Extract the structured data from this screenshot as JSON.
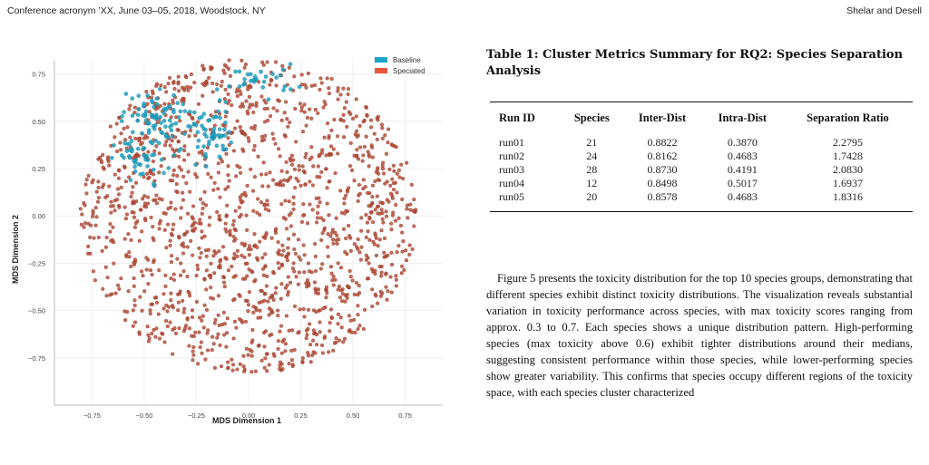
{
  "header": {
    "left": "Conference acronym ’XX, June 03–05, 2018, Woodstock, NY",
    "right": "Shelar and Desell"
  },
  "table": {
    "caption": "Table 1: Cluster Metrics Summary for RQ2: Species Separation Analysis",
    "columns": [
      "Run ID",
      "Species",
      "Inter-Dist",
      "Intra-Dist",
      "Separation Ratio"
    ],
    "rows": [
      [
        "run01",
        "21",
        "0.8822",
        "0.3870",
        "2.2795"
      ],
      [
        "run02",
        "24",
        "0.8162",
        "0.4683",
        "1.7428"
      ],
      [
        "run03",
        "28",
        "0.8730",
        "0.4191",
        "2.0830"
      ],
      [
        "run04",
        "12",
        "0.8498",
        "0.5017",
        "1.6937"
      ],
      [
        "run05",
        "20",
        "0.8578",
        "0.4683",
        "1.8316"
      ]
    ]
  },
  "paragraph": "Figure 5 presents the toxicity distribution for the top 10 species groups, demonstrating that different species exhibit distinct toxicity distributions. The visualization reveals substantial variation in toxicity performance across species, with max toxicity scores ranging from approx. 0.3 to 0.7. Each species shows a unique distribution pattern. High-performing species (max toxicity above 0.6) exhibit tighter distributions around their medians, suggesting consistent performance within those species, while lower-performing species show greater variability. This confirms that species occupy different regions of the toxicity space, with each species cluster characterized",
  "chart_data": {
    "type": "scatter",
    "title": "",
    "xlabel": "MDS Dimension 1",
    "ylabel": "MDS Dimension 2",
    "xlim": [
      -0.93,
      0.93
    ],
    "ylim": [
      -1.0,
      0.82
    ],
    "xticks": [
      "−0.75",
      "−0.50",
      "−0.25",
      "0.00",
      "0.25",
      "0.50",
      "0.75"
    ],
    "xtick_values": [
      -0.75,
      -0.5,
      -0.25,
      0.0,
      0.25,
      0.5,
      0.75
    ],
    "yticks": [
      "0.75",
      "0.50",
      "0.25",
      "0.00",
      "−0.25",
      "−0.50",
      "−0.75"
    ],
    "ytick_values": [
      0.75,
      0.5,
      0.25,
      0.0,
      -0.25,
      -0.5,
      -0.75
    ],
    "grid": true,
    "legend_position": "top-right",
    "series": [
      {
        "name": "Baseline",
        "color": "#1ba3c6",
        "clusters": [
          {
            "cx": -0.47,
            "cy": 0.53,
            "sx": 0.07,
            "sy": 0.06,
            "n": 60
          },
          {
            "cx": -0.18,
            "cy": 0.44,
            "sx": 0.05,
            "sy": 0.08,
            "n": 55
          },
          {
            "cx": -0.52,
            "cy": 0.3,
            "sx": 0.06,
            "sy": 0.05,
            "n": 35
          },
          {
            "cx": 0.05,
            "cy": 0.72,
            "sx": 0.09,
            "sy": 0.04,
            "n": 30
          },
          {
            "cx": -0.38,
            "cy": 0.38,
            "sx": 0.12,
            "sy": 0.1,
            "n": 25
          }
        ]
      },
      {
        "name": "Speciated",
        "color": "#b84a35",
        "distribution": {
          "cx": 0.0,
          "cy": 0.0,
          "radius": 0.85,
          "n": 1500
        }
      }
    ]
  }
}
